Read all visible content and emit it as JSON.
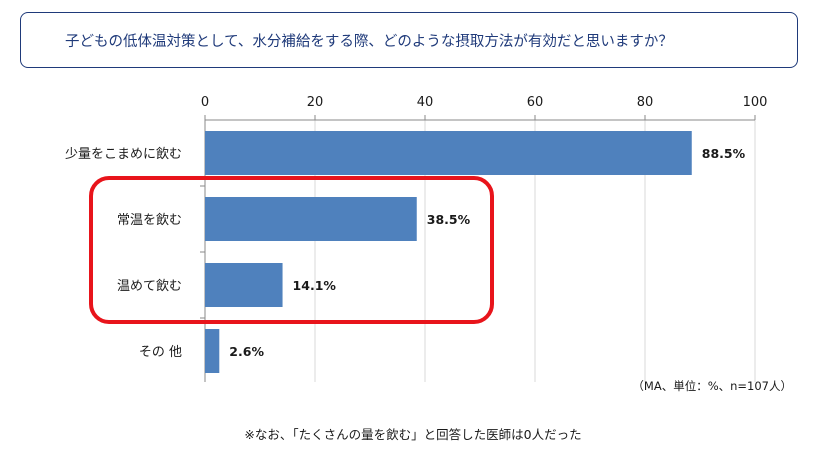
{
  "title": "子どもの低体温対策として、水分補給をする際、どのような摂取方法が有効だと思いますか？",
  "note": "（MA、単位：%、n=107人）",
  "footnote": "※なお、「たくさんの量を飲む」と回答した医師は0人だった",
  "colors": {
    "bar": "#4f81bd",
    "highlight": "#e8141b",
    "title_border": "#1f3a7a",
    "grid": "#d9d9d9"
  },
  "chart_data": {
    "type": "bar",
    "orientation": "horizontal",
    "categories": [
      "少量をこまめに飲む",
      "常温を飲む",
      "温めて飲む",
      "その 他"
    ],
    "values": [
      88.5,
      38.5,
      14.1,
      2.6
    ],
    "data_labels": [
      "88.5%",
      "38.5%",
      "14.1%",
      "2.6%"
    ],
    "xlim": [
      0,
      100
    ],
    "xticks": [
      "0",
      "20",
      "40",
      "60",
      "80",
      "100"
    ],
    "grid": true,
    "highlighted_categories": [
      "常温を飲む",
      "温めて飲む"
    ]
  }
}
